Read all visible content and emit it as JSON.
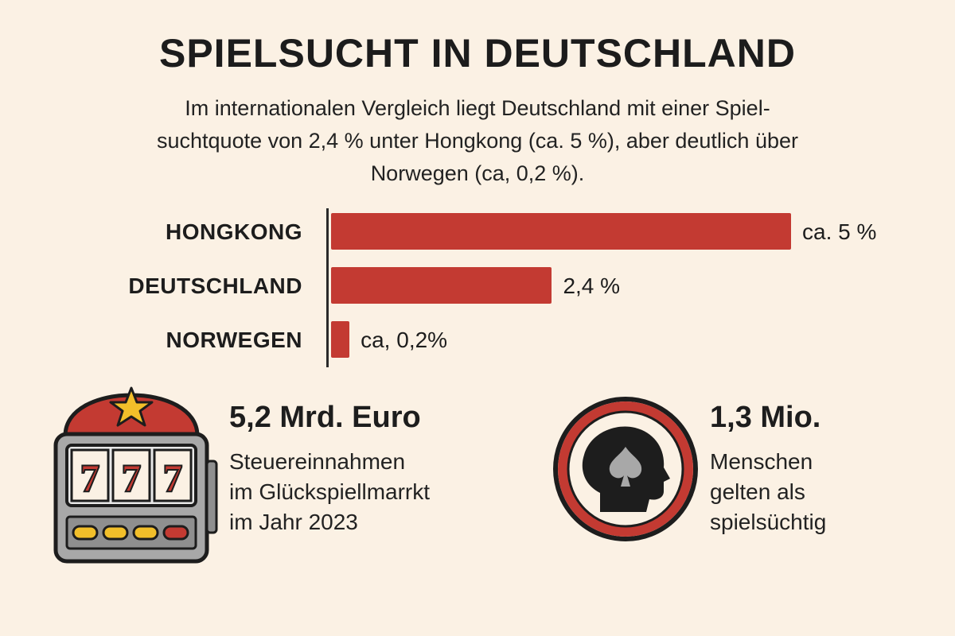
{
  "title": "SPIELSUCHT IN DEUTSCHLAND",
  "subtitle_lines": [
    "Im internationalen Vergleich liegt Deutschland mit einer Spiel-",
    "suchtquote von 2,4 % unter Hongkong (ca. 5 %), aber deutlich über",
    "Norwegen (ca, 0,2 %)."
  ],
  "chart_data": {
    "type": "bar",
    "orientation": "horizontal",
    "categories": [
      "HONGKONG",
      "DEUTSCHLAND",
      "NORWEGEN"
    ],
    "values": [
      5,
      2.4,
      0.2
    ],
    "data_labels": [
      "ca. 5 %",
      "2,4 %",
      "ca, 0,2%"
    ],
    "xlim": [
      0,
      5
    ],
    "bar_color": "#c33a32",
    "grid": false,
    "legend": "none"
  },
  "stats": [
    {
      "icon": "slot-machine-icon",
      "value": "5,2 Mrd. Euro",
      "desc_lines": [
        "Steuereinnahmen",
        "im Glückspiellmarrkt",
        "im Jahr 2023"
      ]
    },
    {
      "icon": "head-with-spade-icon",
      "value": "1,3 Mio.",
      "desc_lines": [
        "Menschen",
        "gelten als",
        "spielsüchtig"
      ]
    }
  ],
  "slot_symbols": [
    "7",
    "7",
    "7"
  ],
  "colors": {
    "background": "#fbf1e4",
    "accent_red": "#c33a32",
    "dark": "#1d1d1d",
    "machine_gray": "#a8a8a8",
    "star_yellow": "#f2bf2a"
  }
}
